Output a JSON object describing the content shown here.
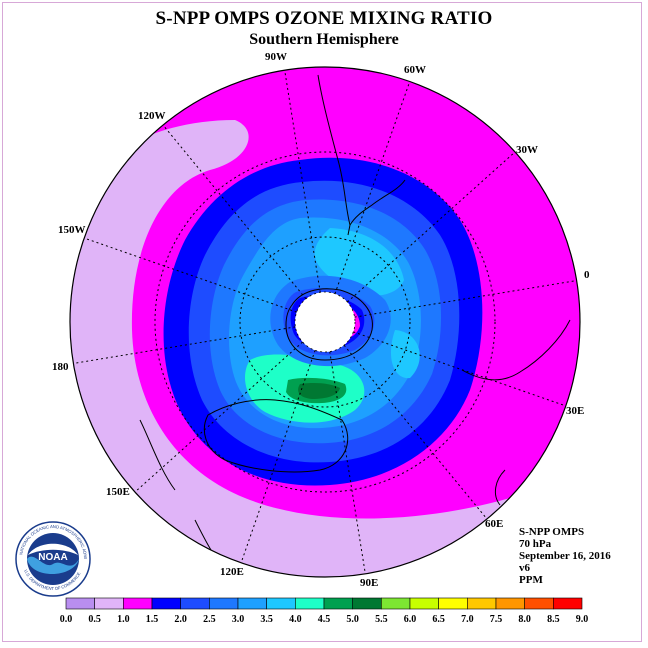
{
  "header": {
    "title": "S-NPP OMPS OZONE MIXING RATIO",
    "subtitle": "Southern Hemisphere"
  },
  "longitude_labels": [
    "90W",
    "60W",
    "30W",
    "0",
    "30E",
    "60E",
    "90E",
    "120E",
    "150E",
    "180",
    "150W",
    "120W"
  ],
  "info": {
    "product": "S-NPP OMPS",
    "level": "70 hPa",
    "date": "September 16, 2016",
    "version": "v6",
    "units": "PPM"
  },
  "logo": {
    "text": "NOAA",
    "ring_text": "NATIONAL OCEANIC AND ATMOSPHERIC ADMINISTRATION",
    "bottom_text": "U.S. DEPARTMENT OF COMMERCE"
  },
  "colorbar": {
    "labels": [
      "0.0",
      "0.5",
      "1.0",
      "1.5",
      "2.0",
      "2.5",
      "3.0",
      "3.5",
      "4.0",
      "4.5",
      "5.0",
      "5.5",
      "6.0",
      "6.5",
      "7.0",
      "7.5",
      "8.0",
      "8.5",
      "9.0"
    ],
    "colors": [
      "#b98ef0",
      "#e0b4f8",
      "#ff00ff",
      "#0000ff",
      "#1e4cff",
      "#1e78ff",
      "#1ea0ff",
      "#1ec8ff",
      "#1effc8",
      "#00a050",
      "#007832",
      "#7de632",
      "#c8ff00",
      "#ffff00",
      "#ffc800",
      "#ff9600",
      "#ff5000",
      "#ff0000",
      "#8b4513"
    ]
  }
}
